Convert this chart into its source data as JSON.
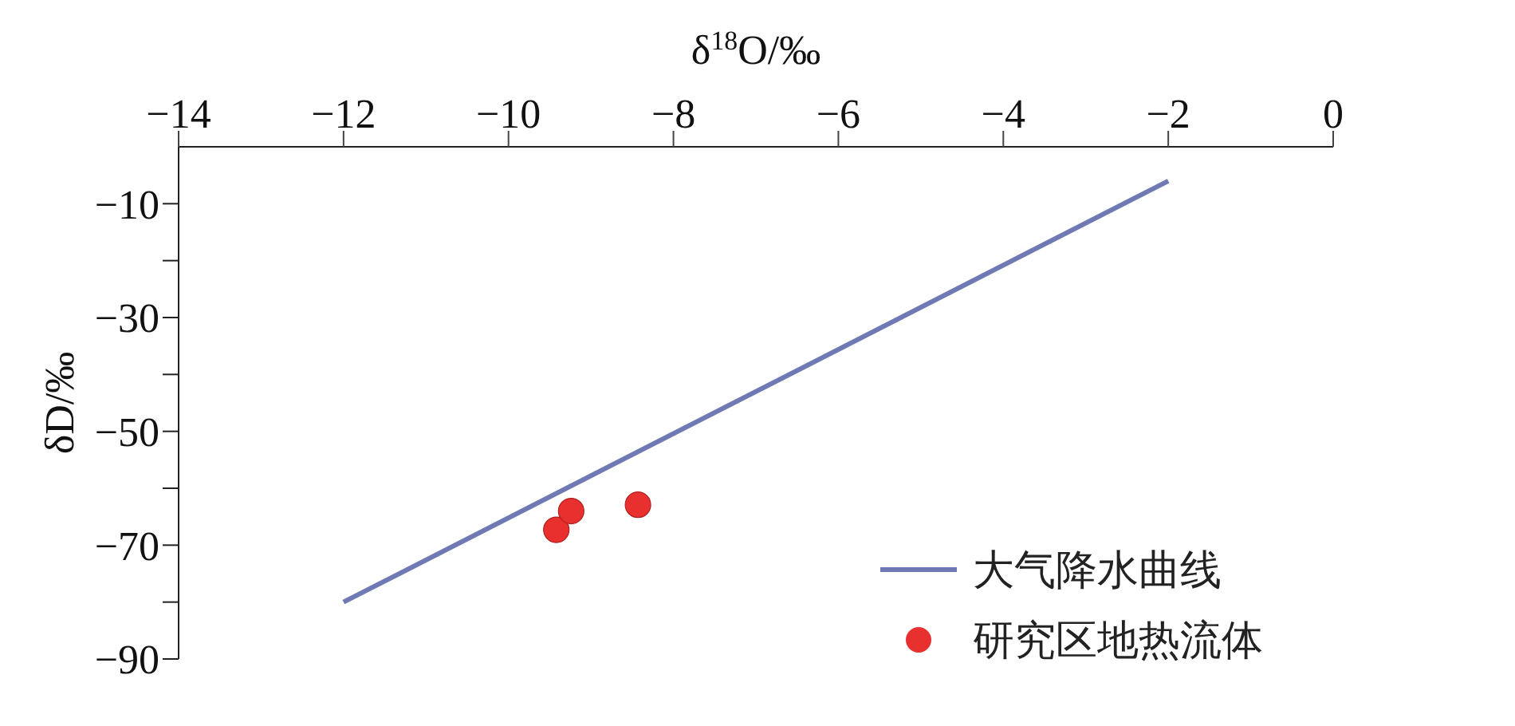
{
  "chart_data": {
    "type": "scatter",
    "xlabel": "δ$^{18}$O/‰",
    "ylabel": "δD/‰",
    "xlim": [
      -14,
      0
    ],
    "xticks": [
      -14,
      -12,
      -10,
      -8,
      -6,
      -4,
      -2,
      0
    ],
    "ylim": [
      -90,
      0
    ],
    "yticks": [
      -90,
      {
        "value": -80,
        "label": null
      },
      -70,
      {
        "value": -60,
        "label": null
      },
      -50,
      {
        "value": -40,
        "label": null
      },
      -30,
      {
        "value": -20,
        "label": null
      },
      -10
    ],
    "grid": false,
    "legend": "bottom right",
    "marker": "circle",
    "series": [
      {
        "name": "大气降水曲线",
        "type": "line",
        "color": "#6f79b3",
        "marker": "none",
        "line_style": "solid",
        "x": [
          -12,
          -2
        ],
        "values": [
          -80,
          -6
        ]
      },
      {
        "name": "研究区地热流体",
        "color": "#e8302e",
        "x": [
          -9.42,
          -9.24,
          -8.43
        ],
        "values": [
          -67.3,
          -64,
          -62.9
        ]
      }
    ]
  }
}
